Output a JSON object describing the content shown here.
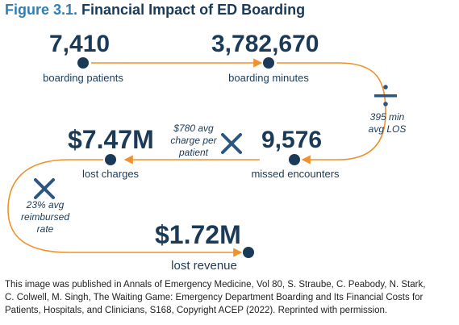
{
  "title": {
    "label": "Figure 3.1.",
    "text": "Financial Impact of ED Boarding"
  },
  "nodes": [
    {
      "value": "7,410",
      "caption": "boarding patients"
    },
    {
      "value": "3,782,670",
      "caption": "boarding minutes"
    },
    {
      "value": "9,576",
      "caption": "missed encounters"
    },
    {
      "value": "$7.47M",
      "caption": "lost charges"
    },
    {
      "value": "$1.72M",
      "caption": "lost revenue"
    }
  ],
  "operations": [
    {
      "symbol": "divide-icon",
      "lines": [
        "395 min",
        "avg LOS"
      ]
    },
    {
      "symbol": "multiply-icon",
      "lines": [
        "$780 avg",
        "charge per",
        "patient"
      ]
    },
    {
      "symbol": "multiply-icon",
      "lines": [
        "23% avg",
        "reimbursed",
        "rate"
      ]
    }
  ],
  "colors": {
    "arrow": "#f0912c",
    "dot": "#1b3a57",
    "title_accent": "#2f7fb6",
    "text": "#1b3a57",
    "operator": "#2a5680"
  },
  "credit": [
    "This image was published in Annals of Emergency Medicine, Vol 80, S. Straube, C. Peabody, N. Stark,",
    "C. Colwell, M. Singh, The Waiting Game: Emergency Department Boarding and Its Financial Costs for",
    "Patients, Hospitals, and Clinicians, S168, Copyright ACEP (2022). Reprinted with permission."
  ]
}
